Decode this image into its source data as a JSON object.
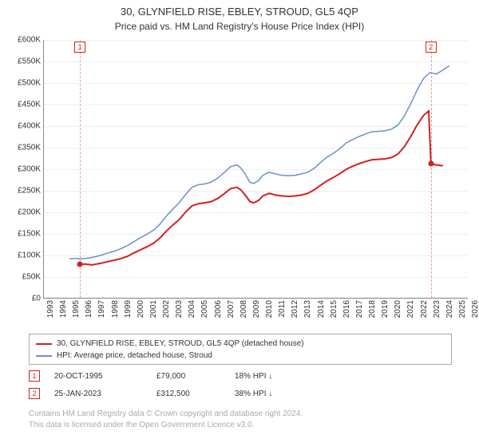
{
  "title": "30, GLYNFIELD RISE, EBLEY, STROUD, GL5 4QP",
  "subtitle": "Price paid vs. HM Land Registry's House Price Index (HPI)",
  "chart": {
    "type": "line",
    "background_color": "#ffffff",
    "grid_color": "#eeeeee",
    "axis_color": "#888888",
    "tick_fontsize": 10,
    "x": {
      "min": 1993,
      "max": 2026,
      "step": 1
    },
    "y": {
      "min": 0,
      "max": 600000,
      "step": 50000,
      "prefix": "£",
      "suffix": "K",
      "divisor": 1000
    },
    "series": [
      {
        "name": "price_paid",
        "label": "30, GLYNFIELD RISE, EBLEY, STROUD, GL5 4QP (detached house)",
        "color": "#d42020",
        "width": 2,
        "points": [
          [
            1995.8,
            79000
          ],
          [
            1996.2,
            80000
          ],
          [
            1996.7,
            78000
          ],
          [
            1997.1,
            80000
          ],
          [
            1997.6,
            83000
          ],
          [
            1998.0,
            86000
          ],
          [
            1998.5,
            89000
          ],
          [
            1999.0,
            93000
          ],
          [
            1999.5,
            98000
          ],
          [
            2000.0,
            106000
          ],
          [
            2000.5,
            113000
          ],
          [
            2001.0,
            120000
          ],
          [
            2001.5,
            128000
          ],
          [
            2002.0,
            140000
          ],
          [
            2002.5,
            156000
          ],
          [
            2003.0,
            170000
          ],
          [
            2003.5,
            183000
          ],
          [
            2004.0,
            200000
          ],
          [
            2004.5,
            215000
          ],
          [
            2005.0,
            220000
          ],
          [
            2005.5,
            222000
          ],
          [
            2006.0,
            225000
          ],
          [
            2006.5,
            232000
          ],
          [
            2007.0,
            243000
          ],
          [
            2007.5,
            255000
          ],
          [
            2008.0,
            258000
          ],
          [
            2008.3,
            252000
          ],
          [
            2008.7,
            238000
          ],
          [
            2009.0,
            225000
          ],
          [
            2009.3,
            222000
          ],
          [
            2009.7,
            228000
          ],
          [
            2010.0,
            238000
          ],
          [
            2010.5,
            244000
          ],
          [
            2011.0,
            240000
          ],
          [
            2011.5,
            238000
          ],
          [
            2012.0,
            237000
          ],
          [
            2012.5,
            238000
          ],
          [
            2013.0,
            240000
          ],
          [
            2013.5,
            244000
          ],
          [
            2014.0,
            252000
          ],
          [
            2014.5,
            263000
          ],
          [
            2015.0,
            273000
          ],
          [
            2015.5,
            281000
          ],
          [
            2016.0,
            290000
          ],
          [
            2016.5,
            300000
          ],
          [
            2017.0,
            307000
          ],
          [
            2017.5,
            313000
          ],
          [
            2018.0,
            318000
          ],
          [
            2018.5,
            322000
          ],
          [
            2019.0,
            323000
          ],
          [
            2019.5,
            324000
          ],
          [
            2020.0,
            327000
          ],
          [
            2020.5,
            335000
          ],
          [
            2021.0,
            352000
          ],
          [
            2021.5,
            376000
          ],
          [
            2022.0,
            403000
          ],
          [
            2022.5,
            425000
          ],
          [
            2022.9,
            435000
          ],
          [
            2023.07,
            312500
          ],
          [
            2023.5,
            310000
          ],
          [
            2024.0,
            308000
          ]
        ]
      },
      {
        "name": "hpi",
        "label": "HPI: Average price, detached house, Stroud",
        "color": "#6a8fd4",
        "width": 1.5,
        "points": [
          [
            1995.0,
            92000
          ],
          [
            1995.5,
            93000
          ],
          [
            1996.0,
            92000
          ],
          [
            1996.5,
            94000
          ],
          [
            1997.0,
            97000
          ],
          [
            1997.5,
            101000
          ],
          [
            1998.0,
            106000
          ],
          [
            1998.5,
            110000
          ],
          [
            1999.0,
            116000
          ],
          [
            1999.5,
            123000
          ],
          [
            2000.0,
            132000
          ],
          [
            2000.5,
            141000
          ],
          [
            2001.0,
            149000
          ],
          [
            2001.5,
            158000
          ],
          [
            2002.0,
            172000
          ],
          [
            2002.5,
            191000
          ],
          [
            2003.0,
            207000
          ],
          [
            2003.5,
            222000
          ],
          [
            2004.0,
            241000
          ],
          [
            2004.5,
            258000
          ],
          [
            2005.0,
            264000
          ],
          [
            2005.5,
            266000
          ],
          [
            2006.0,
            270000
          ],
          [
            2006.5,
            279000
          ],
          [
            2007.0,
            292000
          ],
          [
            2007.5,
            306000
          ],
          [
            2008.0,
            310000
          ],
          [
            2008.3,
            303000
          ],
          [
            2008.7,
            286000
          ],
          [
            2009.0,
            270000
          ],
          [
            2009.3,
            267000
          ],
          [
            2009.7,
            274000
          ],
          [
            2010.0,
            286000
          ],
          [
            2010.5,
            293000
          ],
          [
            2011.0,
            289000
          ],
          [
            2011.5,
            286000
          ],
          [
            2012.0,
            285000
          ],
          [
            2012.5,
            286000
          ],
          [
            2013.0,
            289000
          ],
          [
            2013.5,
            293000
          ],
          [
            2014.0,
            302000
          ],
          [
            2014.5,
            316000
          ],
          [
            2015.0,
            328000
          ],
          [
            2015.5,
            337000
          ],
          [
            2016.0,
            348000
          ],
          [
            2016.5,
            361000
          ],
          [
            2017.0,
            369000
          ],
          [
            2017.5,
            376000
          ],
          [
            2018.0,
            382000
          ],
          [
            2018.5,
            387000
          ],
          [
            2019.0,
            388000
          ],
          [
            2019.5,
            389000
          ],
          [
            2020.0,
            393000
          ],
          [
            2020.5,
            402000
          ],
          [
            2021.0,
            423000
          ],
          [
            2021.5,
            452000
          ],
          [
            2022.0,
            484000
          ],
          [
            2022.5,
            511000
          ],
          [
            2023.0,
            524000
          ],
          [
            2023.5,
            521000
          ],
          [
            2024.0,
            530000
          ],
          [
            2024.5,
            540000
          ]
        ]
      }
    ],
    "markers": [
      {
        "num": "1",
        "year": 1995.8,
        "value": 79000
      },
      {
        "num": "2",
        "year": 2023.07,
        "value": 312500
      }
    ]
  },
  "legend": {
    "border_color": "#aaaaaa",
    "fontsize": 10
  },
  "sales": [
    {
      "num": "1",
      "date": "20-OCT-1995",
      "price": "£79,000",
      "diff": "18%",
      "note": "HPI"
    },
    {
      "num": "2",
      "date": "25-JAN-2023",
      "price": "£312,500",
      "diff": "38%",
      "note": "HPI"
    }
  ],
  "attribution": {
    "line1": "Contains HM Land Registry data © Crown copyright and database right 2024.",
    "line2": "This data is licensed under the Open Government Licence v3.0.",
    "color": "#aaaaaa",
    "fontsize": 10
  }
}
